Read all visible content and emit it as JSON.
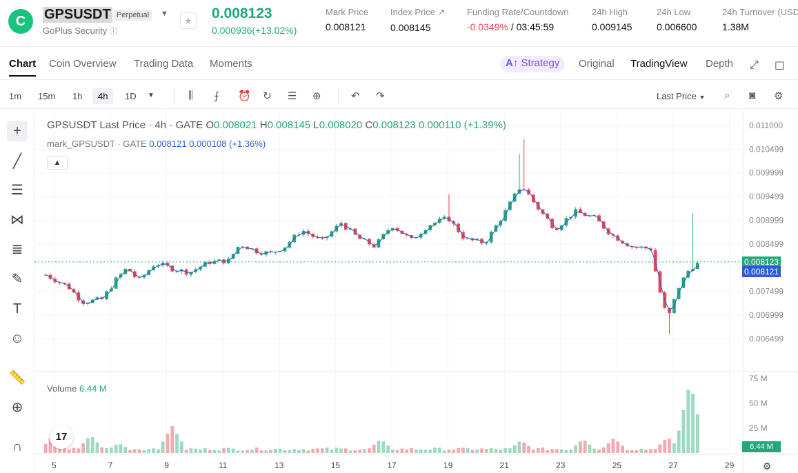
{
  "header": {
    "symbol": "GPSUSDT",
    "contract_type": "Perpetual",
    "issuer": "GoPlus Security",
    "last_price": "0.008123",
    "change": "0.000936(+13.02%)",
    "stats": [
      {
        "label": "Mark Price",
        "value": "0.008121"
      },
      {
        "label": "Index Price ↗",
        "value": "0.008145"
      },
      {
        "label": "Funding Rate/Countdown",
        "value_neg": "-0.0349%",
        "value": "/ 03:45:59"
      },
      {
        "label": "24h High",
        "value": "0.009145"
      },
      {
        "label": "24h Low",
        "value": "0.006600"
      },
      {
        "label": "24h Turnover (USD",
        "value": "1.38M"
      }
    ],
    "colors": {
      "up": "#26a77a",
      "down": "#e8474f",
      "accent": "#7b4fe0"
    }
  },
  "tabs": [
    "Chart",
    "Coin Overview",
    "Trading Data",
    "Moments"
  ],
  "active_tab": "Chart",
  "strategy_label": "Strategy",
  "view_tabs": [
    "Original",
    "TradingView",
    "Depth"
  ],
  "active_view": "TradingView",
  "timeframes": [
    "1m",
    "15m",
    "1h",
    "4h",
    "1D"
  ],
  "active_timeframe": "4h",
  "price_type": "Last Price",
  "chart_legend": {
    "line1_prefix": "GPSUSDT Last Price · 4h · GATE",
    "open": "0.008021",
    "high": "0.008145",
    "low": "0.008020",
    "close": "0.008123",
    "change": "0.000110 (+1.39%)",
    "line2_prefix": "mark_GPSUSDT · GATE",
    "mark_value": "0.008121",
    "mark_change": "0.000108 (+1.36%)"
  },
  "volume_legend": {
    "label": "Volume",
    "value": "6.44 M"
  },
  "tv_logo": "17",
  "price_tags": {
    "last": "0.008123",
    "mark": "0.008121",
    "volume": "6.44 M"
  },
  "chart_data": {
    "type": "candlestick",
    "y_axis_ticks": [
      "0.011000",
      "0.010499",
      "0.009999",
      "0.009499",
      "0.008999",
      "0.008499",
      "0.007499",
      "0.006999",
      "0.006499"
    ],
    "y_range": [
      0.0061,
      0.0111
    ],
    "volume_axis_ticks": [
      "75 M",
      "50 M",
      "25 M"
    ],
    "volume_range": [
      0,
      75
    ],
    "x_axis_ticks": [
      "5",
      "7",
      "9",
      "11",
      "13",
      "15",
      "17",
      "19",
      "21",
      "23",
      "25",
      "27",
      "29"
    ],
    "x_range_days": [
      4.5,
      29.5
    ],
    "anchors": [
      [
        4.7,
        0.00785
      ],
      [
        5.5,
        0.0076
      ],
      [
        6.0,
        0.00728
      ],
      [
        6.7,
        0.00733
      ],
      [
        7.2,
        0.00775
      ],
      [
        7.6,
        0.008
      ],
      [
        8.0,
        0.00772
      ],
      [
        8.6,
        0.0081
      ],
      [
        9.2,
        0.00798
      ],
      [
        9.8,
        0.0079
      ],
      [
        10.5,
        0.00812
      ],
      [
        11.2,
        0.00815
      ],
      [
        11.6,
        0.0085
      ],
      [
        12.2,
        0.00835
      ],
      [
        12.7,
        0.0083
      ],
      [
        13.2,
        0.00845
      ],
      [
        13.8,
        0.0088
      ],
      [
        14.5,
        0.00855
      ],
      [
        15.2,
        0.00895
      ],
      [
        15.8,
        0.00862
      ],
      [
        16.4,
        0.00845
      ],
      [
        17.0,
        0.0089
      ],
      [
        17.7,
        0.00858
      ],
      [
        18.3,
        0.0089
      ],
      [
        19.0,
        0.00905
      ],
      [
        19.6,
        0.0086
      ],
      [
        20.3,
        0.00852
      ],
      [
        21.0,
        0.00915
      ],
      [
        21.6,
        0.00975
      ],
      [
        22.2,
        0.00925
      ],
      [
        22.8,
        0.00882
      ],
      [
        23.5,
        0.00918
      ],
      [
        24.2,
        0.00905
      ],
      [
        24.8,
        0.0087
      ],
      [
        25.5,
        0.00845
      ],
      [
        26.2,
        0.0084
      ],
      [
        26.5,
        0.00755
      ],
      [
        26.8,
        0.0069
      ],
      [
        27.2,
        0.0076
      ],
      [
        27.6,
        0.008
      ],
      [
        28.0,
        0.00812
      ]
    ],
    "volume_peaks": [
      {
        "day": 5.0,
        "value": 19
      },
      {
        "day": 6.3,
        "value": 18
      },
      {
        "day": 7.3,
        "value": 10
      },
      {
        "day": 8.5,
        "value": 5
      },
      {
        "day": 9.2,
        "value": 27
      },
      {
        "day": 13.0,
        "value": 3
      },
      {
        "day": 16.6,
        "value": 14
      },
      {
        "day": 21.6,
        "value": 13
      },
      {
        "day": 23.8,
        "value": 14
      },
      {
        "day": 24.9,
        "value": 15
      },
      {
        "day": 26.8,
        "value": 16
      },
      {
        "day": 27.6,
        "value": 72
      }
    ]
  }
}
